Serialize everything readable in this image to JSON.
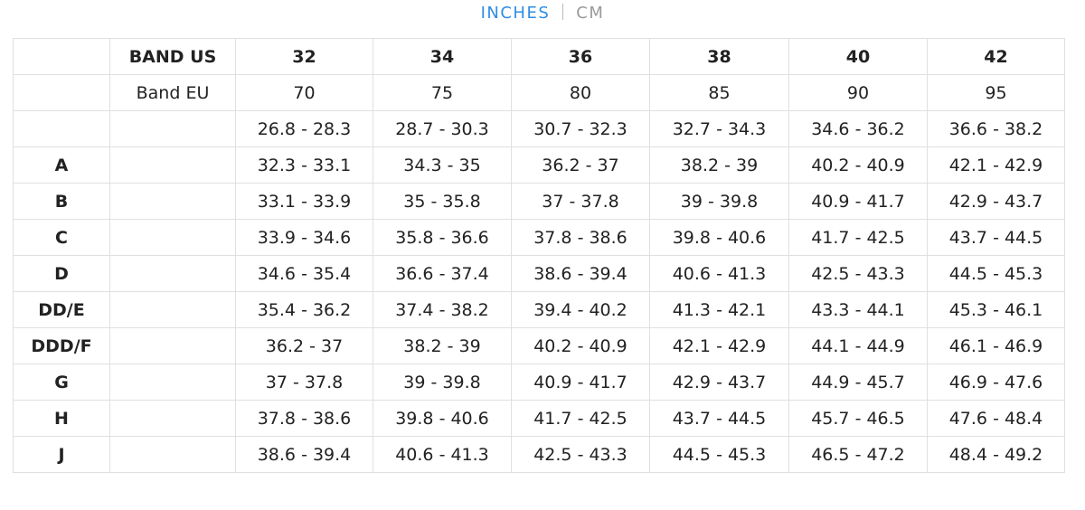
{
  "tabs": [
    "INCHES",
    "CM"
  ],
  "table": {
    "rows": [
      [
        null,
        "BAND US",
        "32",
        "34",
        "36",
        "38",
        "40",
        "42"
      ],
      [
        null,
        "Band EU",
        "70",
        "75",
        "80",
        "85",
        "90",
        "95"
      ],
      [
        null,
        null,
        "26.8 - 28.3",
        "28.7 - 30.3",
        "30.7 - 32.3",
        "32.7 - 34.3",
        "34.6 - 36.2",
        "36.6 - 38.2"
      ],
      [
        "A",
        null,
        "32.3 - 33.1",
        "34.3 - 35",
        "36.2 - 37",
        "38.2 - 39",
        "40.2 - 40.9",
        "42.1 - 42.9"
      ],
      [
        "B",
        null,
        "33.1 - 33.9",
        "35 - 35.8",
        "37 - 37.8",
        "39 - 39.8",
        "40.9 - 41.7",
        "42.9 - 43.7"
      ],
      [
        "C",
        null,
        "33.9 - 34.6",
        "35.8 - 36.6",
        "37.8 - 38.6",
        "39.8 - 40.6",
        "41.7 - 42.5",
        "43.7 - 44.5"
      ],
      [
        "D",
        null,
        "34.6 - 35.4",
        "36.6 - 37.4",
        "38.6 - 39.4",
        "40.6 - 41.3",
        "42.5 - 43.3",
        "44.5 - 45.3"
      ],
      [
        "DD/E",
        null,
        "35.4 - 36.2",
        "37.4 - 38.2",
        "39.4 - 40.2",
        "41.3 - 42.1",
        "43.3 - 44.1",
        "45.3 - 46.1"
      ],
      [
        "DDD/F",
        null,
        "36.2 - 37",
        "38.2 - 39",
        "40.2 - 40.9",
        "42.1 - 42.9",
        "44.1 - 44.9",
        "46.1 - 46.9"
      ],
      [
        "G",
        null,
        "37 - 37.8",
        "39 - 39.8",
        "40.9 - 41.7",
        "42.9 - 43.7",
        "44.9 - 45.7",
        "46.9 - 47.6"
      ],
      [
        "H",
        null,
        "37.8 - 38.6",
        "39.8 - 40.6",
        "41.7 - 42.5",
        "43.7 - 44.5",
        "45.7 - 46.5",
        "47.6 - 48.4"
      ],
      [
        "J",
        null,
        "38.6 - 39.4",
        "40.6 - 41.3",
        "42.5 - 43.3",
        "44.5 - 45.3",
        "46.5 - 47.2",
        "48.4 - 49.2"
      ]
    ]
  }
}
